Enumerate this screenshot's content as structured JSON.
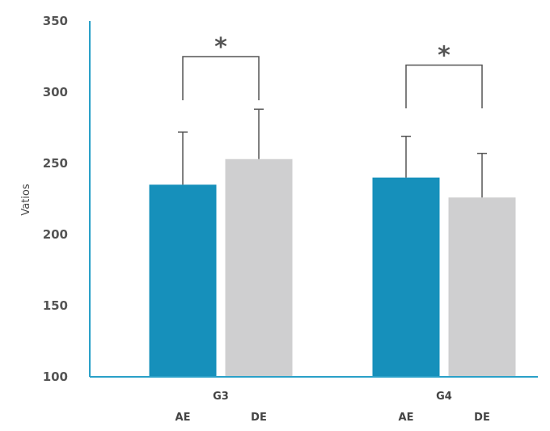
{
  "chart_data": {
    "type": "bar",
    "ylabel": "Vatios",
    "ylim": [
      100,
      350
    ],
    "yticks": [
      100,
      150,
      200,
      250,
      300,
      350
    ],
    "grid": false,
    "legend": "none",
    "categories": [
      "G3",
      "G4"
    ],
    "series": [
      {
        "name": "AE",
        "color": "#1690bb",
        "values": [
          235,
          240
        ],
        "errors": [
          37,
          29
        ]
      },
      {
        "name": "DE",
        "color": "#cfcfd0",
        "values": [
          253,
          226
        ],
        "errors": [
          35,
          31
        ]
      }
    ],
    "significance": [
      {
        "group": "G3",
        "marker": "*",
        "bracket_level": 325
      },
      {
        "group": "G4",
        "marker": "*",
        "bracket_level": 319
      }
    ],
    "axis_color": "#2aa0c8",
    "error_bar_color": "#555555"
  }
}
